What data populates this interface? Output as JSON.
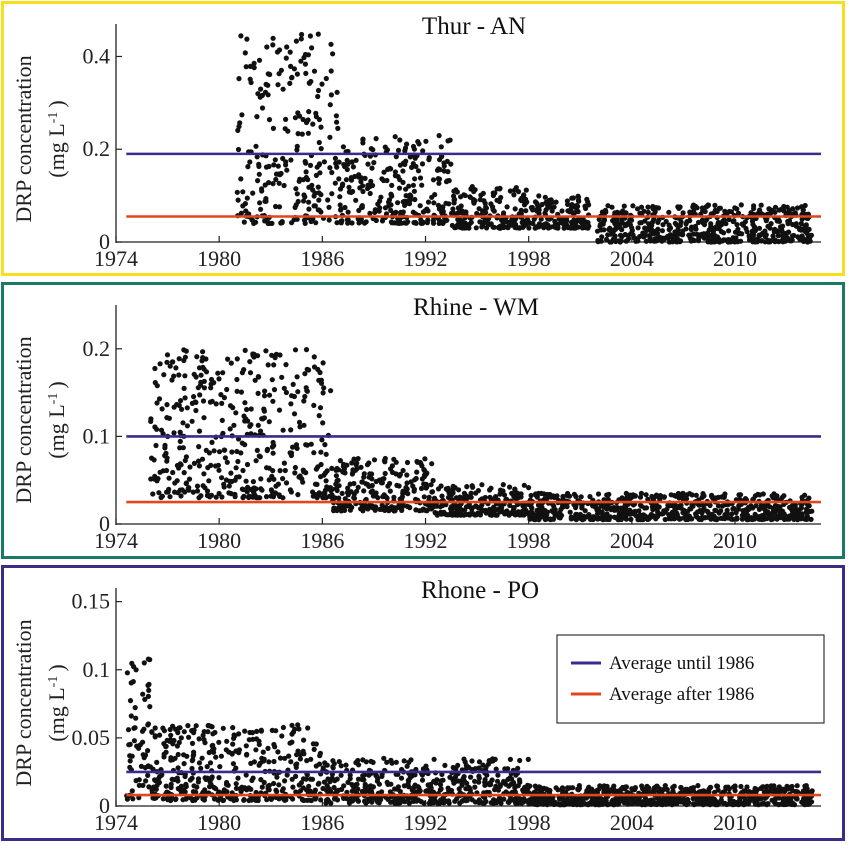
{
  "colors": {
    "average_until_1986": "#3a2b8c",
    "average_after_1986": "#e0471f",
    "points": "#111111",
    "panel_borders": [
      "#f5df1e",
      "#1a7a66",
      "#3a2d85"
    ]
  },
  "ylabel_line1": "DRP concentration",
  "ylabel_line2": "(mg L",
  "ylabel_sup": "-1",
  "ylabel_close": ")",
  "legend": {
    "until": "Average until 1986",
    "after": "Average after 1986"
  },
  "chart_data": [
    {
      "type": "scatter",
      "title": "Thur - AN",
      "x_range": [
        1974,
        2015
      ],
      "x_ticks": [
        "1974",
        "1980",
        "1986",
        "1992",
        "1998",
        "2004",
        "2010"
      ],
      "ylim": [
        0,
        0.47
      ],
      "y_ticks": [
        "0",
        "0.2",
        "0.4"
      ],
      "avg_until_1986": 0.19,
      "avg_after_1986": 0.055,
      "points_summary": [
        [
          1981.0,
          1987.0,
          0.04,
          0.45
        ],
        [
          1987.0,
          1993.5,
          0.04,
          0.23
        ],
        [
          1993.5,
          1998.0,
          0.03,
          0.12
        ],
        [
          1998.0,
          2001.5,
          0.03,
          0.1
        ],
        [
          2002.0,
          2014.5,
          0.0,
          0.08
        ]
      ]
    },
    {
      "type": "scatter",
      "title": "Rhine - WM",
      "x_range": [
        1974,
        2015
      ],
      "x_ticks": [
        "1974",
        "1980",
        "1986",
        "1992",
        "1998",
        "2004",
        "2010"
      ],
      "ylim": [
        0,
        0.25
      ],
      "y_ticks": [
        "0",
        "0.1",
        "0.2"
      ],
      "avg_until_1986": 0.1,
      "avg_after_1986": 0.025,
      "points_summary": [
        [
          1976.0,
          1986.5,
          0.03,
          0.2
        ],
        [
          1986.5,
          1992.5,
          0.015,
          0.075
        ],
        [
          1992.5,
          1998.0,
          0.01,
          0.045
        ],
        [
          1998.0,
          2014.5,
          0.005,
          0.035
        ]
      ]
    },
    {
      "type": "scatter",
      "title": "Rhone - PO",
      "x_range": [
        1974,
        2015
      ],
      "x_ticks": [
        "1974",
        "1980",
        "1986",
        "1992",
        "1998",
        "2004",
        "2010"
      ],
      "ylim": [
        0,
        0.16
      ],
      "y_ticks": [
        "0",
        "0.05",
        "0.1",
        "0.15"
      ],
      "avg_until_1986": 0.025,
      "avg_after_1986": 0.008,
      "points_summary": [
        [
          1974.5,
          1976.0,
          0.005,
          0.11
        ],
        [
          1976.0,
          1986.0,
          0.004,
          0.06
        ],
        [
          1986.0,
          1998.0,
          0.002,
          0.035
        ],
        [
          1998.0,
          2014.5,
          0.001,
          0.015
        ]
      ]
    }
  ]
}
